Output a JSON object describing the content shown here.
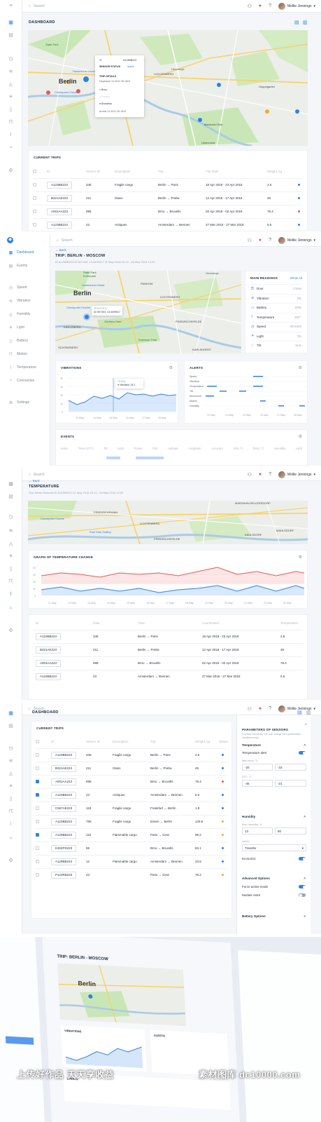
{
  "common": {
    "search_placeholder": "Search",
    "user_name": "Mollie Jennings"
  },
  "s1": {
    "title": "DASHBOARD",
    "map_labels": {
      "berlin": "Berlin",
      "state_park": "State Park",
      "hackescher": "Hackescher Markt",
      "checkpoint": "Checkpoint Charlie",
      "herzberge": "Herzberge",
      "lichtenberg": "LICHTENBERG",
      "mahlsdorf": "Mahlsdorf-Süd",
      "hoppegarten": "Hoppegarten",
      "uhlenhorst": "Uhlenhorst"
    },
    "popup": {
      "id_label": "ID",
      "id_value": "A123BB223",
      "sensor_label": "SENSOR STATUS",
      "sensor_value": "Active",
      "trip_label": "TRIP DETAILS",
      "trip_sub": "Departure 12.4012 35.1524",
      "stop1": "Brno",
      "stop2": "Brüssel",
      "stop3": "Bruxelles",
      "arrival": "Arrival 12.4012 35.1524"
    },
    "table_title": "CURRENT TRIPS",
    "columns": [
      "ID",
      "Sensor ID",
      "Description",
      "Trip",
      "Trip Date",
      "Weight, kg"
    ],
    "rows": [
      {
        "id": "A123BB223",
        "sensor": "345",
        "desc": "Fragile cargo",
        "trip": "Berlin → Paris",
        "date": "18 Apr 2018 - 23 Apr 2018",
        "weight": "2.5",
        "status": "#2f80ed"
      },
      {
        "id": "B321AE223",
        "sensor": "211",
        "desc": "Glass",
        "trip": "Berlin → Praha",
        "date": "12 Apr 2018 - 17 Apr 2018",
        "weight": "48",
        "status": "#2f80ed"
      },
      {
        "id": "A001AA223",
        "sensor": "998",
        "desc": "",
        "trip": "Brno → Bruxells",
        "date": "02 Apr 2018 - 02 Apr 2018",
        "weight": "78.4",
        "status": "#eb5757"
      },
      {
        "id": "A123BB223",
        "sensor": "23",
        "desc": "Antiques",
        "trip": "Amsterdam → Bremen",
        "date": "27 Mar 2018 - 27 Mar 2018",
        "weight": "5.5",
        "status": "#2f80ed"
      }
    ]
  },
  "s2": {
    "nav": [
      "Dashboard",
      "Events",
      "Speed",
      "Vibration",
      "Humidity",
      "Light",
      "Battery",
      "Motion",
      "Temperature",
      "Connection",
      "Settings"
    ],
    "back": "← Back",
    "title": "TRIP: BERLIN - MOSCOW",
    "meta": "ID A123BB223    52.507403, 13.4409517    11 May 2018 23:13 - 28 May 2018 12:00",
    "map_labels": {
      "berlin": "Berlin",
      "state_park": "State Park",
      "kulturpark": "Kulturpark",
      "hackescher": "Hackescher Markt",
      "checkpoint": "Checkpoint Charlie",
      "gorlitzer": "Görlitzer Park",
      "treptower": "Treptower Park",
      "pankow": "PANKOW",
      "lichtenberg": "LICHTENBERG",
      "herzberge": "Herzberge",
      "friedrichsfelde": "FRIEDRICHSFELDE",
      "karlshorst": "KARLSHORST",
      "kreuzberg": "KREUZBERG",
      "schoneberg": "SCHÖNEBERG"
    },
    "map_popup": {
      "title": "SENSOR ID",
      "value": "52.507403, 13.4409517"
    },
    "readings_title": "MAIN READINGS",
    "readings_link": "Show All",
    "readings": [
      {
        "icon": "⚿",
        "name": "Door",
        "value": "Close"
      },
      {
        "icon": "≋",
        "name": "Vibration",
        "value": "2%"
      },
      {
        "icon": "▭",
        "name": "Battery",
        "value": "63%"
      },
      {
        "icon": "⌇",
        "name": "Temperature",
        "value": "33C°"
      },
      {
        "icon": "◷",
        "name": "Speed",
        "value": "60 km/h"
      },
      {
        "icon": "☀",
        "name": "Light",
        "value": "On"
      },
      {
        "icon": "⟋",
        "name": "Tilt",
        "value": "11%"
      }
    ],
    "vib_title": "VIBRATIONS",
    "vib_tooltip": {
      "date": "15 May",
      "label": "Vibration",
      "value": "15.2"
    },
    "alerts_title": "ALERTS",
    "alert_rows": [
      "Speed",
      "Vibration",
      "Temperature",
      "Tilt",
      "Movement",
      "Motion",
      "Humidity"
    ],
    "events_title": "EVENTS",
    "events_cols": [
      "Index",
      "Time (UTC)",
      "Tilt",
      "Light",
      "Power",
      "RSI",
      "Latitude",
      "Longitude",
      "Accuracy",
      "RSL TI",
      "Temp °C",
      "Humidity",
      "Light"
    ]
  },
  "s3": {
    "back": "← Back",
    "title": "TEMPERATURE",
    "meta": "Trip: Berlin-Moscow    ID A123BB223    11 May 2018 23:13 - 28 May 2018 12:00",
    "map_labels": {
      "checkpoint": "Checkpoint Charlie",
      "east_side": "East Side Gallery",
      "lichtenberg": "LICHTENBERG",
      "friedrichsfelde": "FRIEDRICHSFELDE",
      "friedrichshain": "FRIEDRICHSHAIN",
      "marzahn": "MARZAHN-HELLERSDORF",
      "mahlsdorf": "MAHLSDORF",
      "kaulsdorf": "KAULSDORF"
    },
    "graph_title": "GRAPH OF TEMPERATURE CHANGE",
    "columns": [
      "ID",
      "Date",
      "Time",
      "Coordinates",
      "Temperature"
    ],
    "rows": [
      {
        "id": "A123BB223",
        "date": "345",
        "time": "Berlin → Paris",
        "coord": "18 Apr 2018 - 23 Apr 2018",
        "temp": "2.5"
      },
      {
        "id": "B321AE223",
        "date": "211",
        "time": "Berlin → Praha",
        "coord": "12 Apr 2018 - 17 Apr 2018",
        "temp": "48"
      },
      {
        "id": "A001AA223",
        "date": "998",
        "time": "Brno → Bruxells",
        "coord": "02 Apr 2018 - 02 Apr 2018",
        "temp": "78.4"
      },
      {
        "id": "A123BB223",
        "date": "23",
        "time": "Amsterdam → Bremen",
        "coord": "27 Mar 2018 - 27 Mar 2018",
        "temp": "5.5"
      }
    ]
  },
  "s4": {
    "title": "DASHBOARD",
    "table_title": "CURRENT TRIPS",
    "columns": [
      "ID",
      "Sensor ID",
      "Description",
      "Trip",
      "Weight, kg",
      "Status"
    ],
    "rows": [
      {
        "on": false,
        "id": "A123BB223",
        "sensor": "345",
        "desc": "Fragile cargo",
        "trip": "Berlin → Paris",
        "weight": "2.5",
        "status": "#2f80ed"
      },
      {
        "on": false,
        "id": "B321AE223",
        "sensor": "211",
        "desc": "Glass",
        "trip": "Berlin → Praha",
        "weight": "48",
        "status": "#2f80ed"
      },
      {
        "on": true,
        "id": "A001AA223",
        "sensor": "998",
        "desc": "",
        "trip": "Brno → Bruxells",
        "weight": "78.4",
        "status": "#eb5757"
      },
      {
        "on": true,
        "id": "A123BB223",
        "sensor": "23",
        "desc": "Antiques",
        "trip": "Amsterdam → Bremen",
        "weight": "5.5",
        "status": "#2f80ed"
      },
      {
        "on": false,
        "id": "C567AE223",
        "sensor": "118",
        "desc": "Fragile cargo",
        "trip": "Frankfurt → Berlin",
        "weight": "1.8",
        "status": "#2f80ed"
      },
      {
        "on": false,
        "id": "A123BB223",
        "sensor": "786",
        "desc": "Fragile cargo",
        "trip": "Essen → Berlin",
        "weight": "129.5",
        "status": "#f2a93b"
      },
      {
        "on": true,
        "id": "A129BB223",
        "sensor": "110",
        "desc": "Flammable cargo",
        "trip": "Paris → Graz",
        "weight": "99.2",
        "status": "#f2a93b"
      },
      {
        "on": false,
        "id": "K302PD223",
        "sensor": "55",
        "desc": "",
        "trip": "Brno → Bruxells",
        "weight": "83.1",
        "status": "#2f80ed"
      },
      {
        "on": false,
        "id": "A129BB223",
        "sensor": "12",
        "desc": "Flammable cargo",
        "trip": "Amsterdam → Bremen",
        "weight": "23.5",
        "status": "#2f80ed"
      },
      {
        "on": false,
        "id": "P123RB223",
        "sensor": "43",
        "desc": "",
        "trip": "Paris → Graz",
        "weight": "78.2",
        "status": "#f2a93b"
      }
    ],
    "panel": {
      "title": "PARAMETERS OF SENSORS",
      "subtitle": "3 sensor elements. You can change their parameters simultaneously.",
      "temperature": "Temperature",
      "temp_alert": "Temperature alert",
      "max_temp_lbl": "Max temp, °C",
      "max_a": "-20",
      "max_b": "-15",
      "rtc_lbl": "RTC, °C",
      "rtc_a": "-45",
      "rtc_b": "-21",
      "humidity": "Humidity",
      "max_hum_lbl": "Max Humidity, %",
      "hum_a": "13",
      "hum_b": "80",
      "action_lbl": "Action",
      "action_val": "Transfer",
      "economic": "Economic",
      "advanced": "Advanced Options",
      "force_active": "Force active mode",
      "module_reset": "Module reset",
      "battery": "Battery Options"
    }
  },
  "s5": {
    "title": "TRIP: BERLIN - MOSCOW",
    "vib_title": "VIBRATIONS",
    "alerts_title": "ALERTS",
    "events_title": "EVENTS",
    "map_berlin": "Berlin",
    "watermark_left": "上传好作品 天天享收益",
    "watermark_right": "素材图库 dc10000.com"
  }
}
